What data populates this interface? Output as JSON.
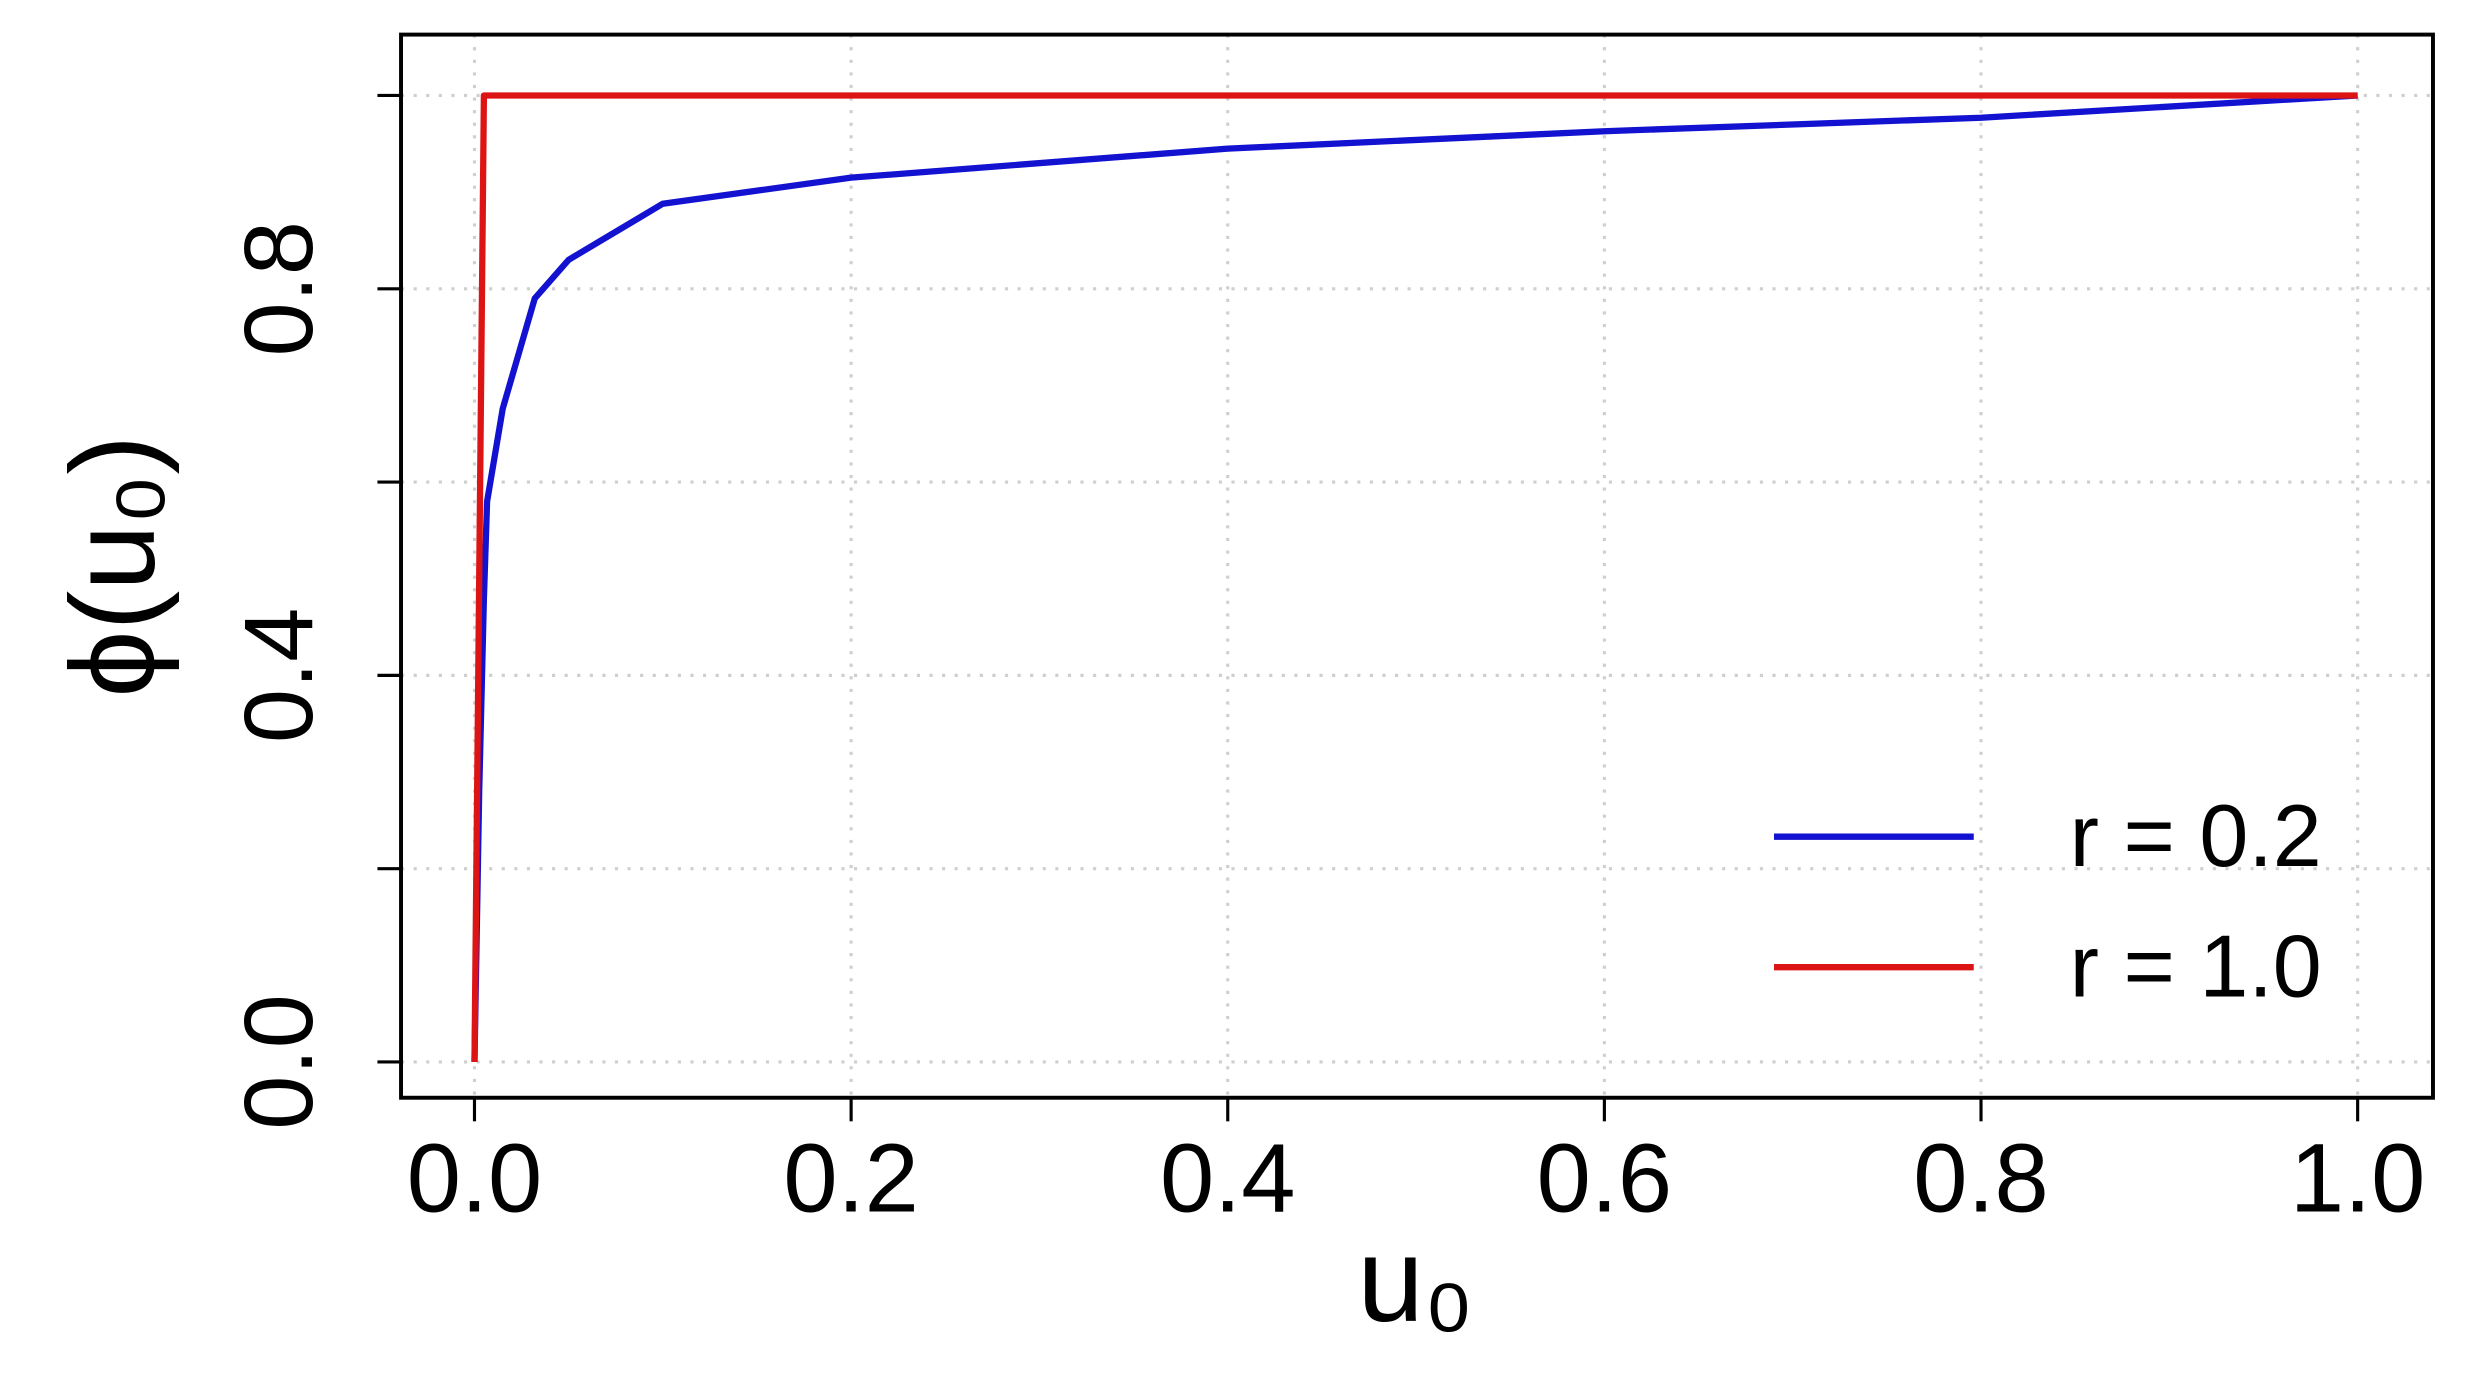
{
  "chart_data": {
    "type": "line",
    "xlabel": "u₀",
    "ylabel": "ϕ(u₀)",
    "x": [
      0,
      0.0025,
      0.005,
      0.0067,
      0.015,
      0.032,
      0.05,
      0.1,
      0.2,
      0.4,
      0.6,
      0.8,
      1.0
    ],
    "series": [
      {
        "name": "r = 0.2",
        "color": "#1212d0",
        "values": [
          0,
          0.28,
          0.48,
          0.58,
          0.676,
          0.79,
          0.83,
          0.888,
          0.915,
          0.945,
          0.963,
          0.977,
          1.0
        ]
      },
      {
        "name": "r = 1.0",
        "color": "#dd1414",
        "values": [
          0,
          0.5,
          1,
          1,
          1,
          1,
          1,
          1,
          1,
          1,
          1,
          1,
          1
        ]
      }
    ],
    "xlim": [
      -0.039,
      1.04
    ],
    "ylim": [
      -0.037,
      1.063
    ],
    "xticks": [
      {
        "value": 0,
        "label": "0.0"
      },
      {
        "value": 0.2,
        "label": "0.2"
      },
      {
        "value": 0.4,
        "label": "0.4"
      },
      {
        "value": 0.6,
        "label": "0.6"
      },
      {
        "value": 0.8,
        "label": "0.8"
      },
      {
        "value": 1.0,
        "label": "1.0"
      }
    ],
    "yticks": [
      {
        "value": 0,
        "label": "0.0"
      },
      {
        "value": 0.4,
        "label": "0.4"
      },
      {
        "value": 0.8,
        "label": "0.8"
      }
    ],
    "yminor_ticks": [
      0.2,
      0.6,
      1.0
    ],
    "grid": true,
    "legend": "bottom-right"
  }
}
